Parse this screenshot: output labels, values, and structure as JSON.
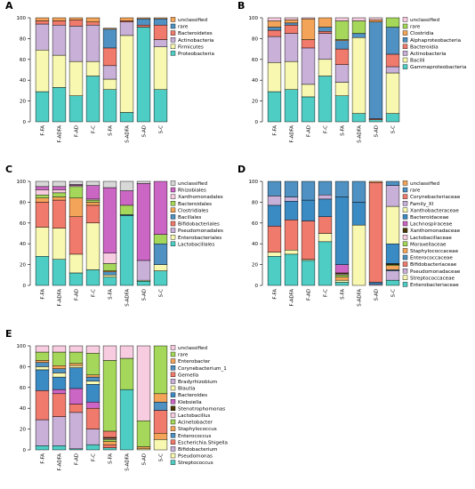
{
  "chart_data": [
    {
      "type": "bar",
      "panel": "A",
      "categories": [
        "F-FA",
        "F-ADFA",
        "F-AD",
        "F-C",
        "S-FA",
        "S-ADFA",
        "S-AD",
        "S-C"
      ],
      "ylim": [
        0,
        100
      ],
      "yticks": [
        "0",
        "20",
        "40",
        "60",
        "80",
        "100"
      ],
      "legend": [
        "unclassified",
        "rare",
        "Bacteroidetes",
        "Actinobacteria",
        "Firmicutes",
        "Proteobacteria"
      ],
      "series": [
        {
          "name": "Proteobacteria",
          "color": "#4ecdc4",
          "values": [
            29,
            33,
            25,
            44,
            31,
            9,
            91,
            31
          ]
        },
        {
          "name": "Firmicutes",
          "color": "#f8f8b0",
          "values": [
            40,
            31,
            33,
            14,
            10,
            74,
            0,
            41
          ]
        },
        {
          "name": "Actinobacteria",
          "color": "#c8b0d8",
          "values": [
            25,
            29,
            34,
            35,
            13,
            13,
            0,
            7
          ]
        },
        {
          "name": "Bacteroidetes",
          "color": "#f07a6c",
          "values": [
            3,
            4,
            6,
            3,
            17,
            1,
            2,
            14
          ]
        },
        {
          "name": "rare",
          "color": "#4e91c2",
          "values": [
            0,
            0,
            0,
            0,
            18,
            0,
            6,
            6
          ]
        },
        {
          "name": "unclassified",
          "color": "#f4a458",
          "values": [
            3,
            3,
            2,
            4,
            1,
            3,
            1,
            1
          ]
        }
      ]
    },
    {
      "type": "bar",
      "panel": "B",
      "categories": [
        "F-FA",
        "F-ADFA",
        "F-AD",
        "F-C",
        "S-FA",
        "S-ADFA",
        "S-AD",
        "S-C"
      ],
      "ylim": [
        0,
        100
      ],
      "yticks": [
        "0",
        "20",
        "40",
        "60",
        "80",
        "100"
      ],
      "legend": [
        "unclassified",
        "rare",
        "Clostridia",
        "Alphaproteobacteria",
        "Bacteroidia",
        "Actinobacteria",
        "Bacilli",
        "Gammaproteobacteria"
      ],
      "series": [
        {
          "name": "Gammaproteobacteria",
          "color": "#4ecdc4",
          "values": [
            29,
            31,
            24,
            44,
            25,
            8,
            2,
            8
          ]
        },
        {
          "name": "Bacilli",
          "color": "#f8f8b0",
          "values": [
            28,
            27,
            12,
            16,
            13,
            73,
            0,
            39
          ]
        },
        {
          "name": "Actinobacteria",
          "color": "#c8b0d8",
          "values": [
            25,
            27,
            35,
            25,
            17,
            0,
            0,
            6
          ]
        },
        {
          "name": "Bacteroidia",
          "color": "#f07a6c",
          "values": [
            6,
            8,
            8,
            2,
            15,
            0,
            1,
            12
          ]
        },
        {
          "name": "Alphaproteobacteria",
          "color": "#4e91c2",
          "values": [
            3,
            2,
            0,
            4,
            8,
            4,
            93,
            26
          ]
        },
        {
          "name": "Clostridia",
          "color": "#f4a458",
          "values": [
            6,
            3,
            20,
            9,
            1,
            0,
            2,
            0
          ]
        },
        {
          "name": "rare",
          "color": "#a5d85a",
          "values": [
            0,
            0,
            0,
            0,
            18,
            12,
            0,
            9
          ]
        },
        {
          "name": "unclassified",
          "color": "#f8cce0",
          "values": [
            3,
            2,
            1,
            0,
            3,
            3,
            2,
            0
          ]
        }
      ]
    },
    {
      "type": "bar",
      "panel": "C",
      "categories": [
        "F-FA",
        "F-ADFA",
        "F-AD",
        "F-C",
        "S-FA",
        "S-ADFA",
        "S-AD",
        "S-C"
      ],
      "ylim": [
        0,
        100
      ],
      "yticks": [
        "0",
        "20",
        "40",
        "60",
        "80",
        "100"
      ],
      "legend": [
        "unclassified",
        "Rhizobiales",
        "Xanthomonadales",
        "Bacteroidales",
        "Clostridiales",
        "Bacillales",
        "Bifidobacteriales",
        "Pseudomonadales",
        "Enterobacteriales",
        "Lactobacillales"
      ],
      "series": [
        {
          "name": "Lactobacillales",
          "color": "#4ecdc4",
          "values": [
            28,
            25,
            12,
            15,
            8,
            67,
            4,
            14
          ]
        },
        {
          "name": "Enterobacteriales",
          "color": "#f8f8b0",
          "values": [
            28,
            30,
            18,
            45,
            2,
            0,
            1,
            6
          ]
        },
        {
          "name": "Pseudomonadales",
          "color": "#c8b0d8",
          "values": [
            0,
            0,
            0,
            0,
            0,
            0,
            19,
            0
          ]
        },
        {
          "name": "Bifidobacteriales",
          "color": "#f07a6c",
          "values": [
            24,
            27,
            36,
            17,
            0,
            0,
            0,
            0
          ]
        },
        {
          "name": "Bacillales",
          "color": "#4e91c2",
          "values": [
            0,
            0,
            0,
            0,
            3,
            1,
            0,
            20
          ]
        },
        {
          "name": "Clostridiales",
          "color": "#f4a458",
          "values": [
            4,
            3,
            18,
            3,
            1,
            0,
            0,
            0
          ]
        },
        {
          "name": "Bacteroidales",
          "color": "#a5d85a",
          "values": [
            3,
            4,
            11,
            2,
            7,
            9,
            0,
            9
          ]
        },
        {
          "name": "Xanthomonadales",
          "color": "#f8cce0",
          "values": [
            5,
            3,
            1,
            1,
            10,
            0,
            0,
            0
          ]
        },
        {
          "name": "Rhizobiales",
          "color": "#cc66c4",
          "values": [
            3,
            3,
            1,
            13,
            63,
            14,
            74,
            51
          ]
        },
        {
          "name": "unclassified",
          "color": "#d8d8d8",
          "values": [
            5,
            5,
            3,
            4,
            6,
            9,
            2,
            0
          ]
        }
      ]
    },
    {
      "type": "bar",
      "panel": "D",
      "categories": [
        "F-FA",
        "F-ADFA",
        "F-AD",
        "F-C",
        "S-FA",
        "S-ADFA",
        "S-AD",
        "S-C"
      ],
      "ylim": [
        0,
        100
      ],
      "yticks": [
        "0",
        "20",
        "40",
        "60",
        "80",
        "100"
      ],
      "legend": [
        "unclassified",
        "rare",
        "Corynebacteriaceae",
        "Family_XI",
        "Xanthobacteraceae",
        "Bacteroidaceae",
        "Lachnospiraceae",
        "Xanthomonadaceae",
        "Lactobacillaceae",
        "Moraxellaceae",
        "Staphylococcaceae",
        "Enterococcaceae",
        "Bifidobacteriaceae",
        "Pseudomonadaceae",
        "Streptococcaceae",
        "Enterobacteriaceae"
      ],
      "series": [
        {
          "name": "Enterobacteriaceae",
          "color": "#4ecdc4",
          "values": [
            28,
            30,
            24,
            42,
            3,
            0,
            0,
            5
          ]
        },
        {
          "name": "Streptococcaceae",
          "color": "#f8f8b0",
          "values": [
            4,
            4,
            1,
            8,
            2,
            58,
            0,
            0
          ]
        },
        {
          "name": "Pseudomonadaceae",
          "color": "#c8b0d8",
          "values": [
            0,
            0,
            0,
            0,
            0,
            0,
            1,
            9
          ]
        },
        {
          "name": "Bifidobacteriaceae",
          "color": "#f07a6c",
          "values": [
            25,
            29,
            37,
            16,
            0,
            0,
            0,
            0
          ]
        },
        {
          "name": "Enterococcaceae",
          "color": "#4e91c2",
          "values": [
            0,
            0,
            0,
            0,
            0,
            0,
            0,
            1
          ]
        },
        {
          "name": "Staphylococcaceae",
          "color": "#f4a458",
          "values": [
            0,
            0,
            0,
            0,
            3,
            0,
            0,
            4
          ]
        },
        {
          "name": "Moraxellaceae",
          "color": "#a5d85a",
          "values": [
            0,
            0,
            0,
            0,
            2,
            0,
            0,
            1
          ]
        },
        {
          "name": "Lactobacillaceae",
          "color": "#f8cce0",
          "values": [
            0,
            0,
            0,
            0,
            1,
            0,
            0,
            0
          ]
        },
        {
          "name": "Xanthomonadaceae",
          "color": "#4a3a08",
          "values": [
            0,
            0,
            0,
            0,
            1,
            0,
            0,
            1
          ]
        },
        {
          "name": "Lachnospiraceae",
          "color": "#cc66c4",
          "values": [
            0,
            0,
            0,
            0,
            8,
            0,
            0,
            0
          ]
        },
        {
          "name": "Bacteroidaceae",
          "color": "#3a8ac4",
          "values": [
            20,
            18,
            20,
            17,
            65,
            22,
            2,
            19
          ]
        },
        {
          "name": "Xanthobacteraceae",
          "color": "#f8f8b0",
          "values": [
            0,
            0,
            0,
            0,
            0,
            0,
            0,
            36
          ]
        },
        {
          "name": "Family_XI",
          "color": "#c8b0d8",
          "values": [
            9,
            4,
            0,
            4,
            0,
            0,
            0,
            20
          ]
        },
        {
          "name": "Corynebacteriaceae",
          "color": "#f07a6c",
          "values": [
            0,
            0,
            0,
            0,
            0,
            0,
            96,
            0
          ]
        },
        {
          "name": "rare",
          "color": "#4e91c2",
          "values": [
            14,
            15,
            18,
            13,
            15,
            20,
            0,
            4
          ]
        },
        {
          "name": "unclassified",
          "color": "#f4a458",
          "values": [
            0,
            0,
            0,
            0,
            0,
            0,
            1,
            0
          ]
        }
      ]
    },
    {
      "type": "bar",
      "panel": "E",
      "categories": [
        "F-FA",
        "F-ADFA",
        "F-AD",
        "F-C",
        "S-FA",
        "S-ADFA",
        "S-AD",
        "S-C"
      ],
      "ylim": [
        0,
        100
      ],
      "yticks": [
        "0",
        "20",
        "40",
        "60",
        "80",
        "100"
      ],
      "legend": [
        "unclassified",
        "rare",
        "Enterobacter",
        "Corynebacterium_1",
        "Gemella",
        "Bradyrhizobium",
        "Blautia",
        "Bacteroides",
        "Klebsiella",
        "Stenotrophomonas",
        "Lactobacillus",
        "Acinetobacter",
        "Staphylococcus",
        "Enterococcus",
        "Escherichia.Shigella",
        "Bifidobacterium",
        "Pseudomonas",
        "Streptococcus"
      ],
      "series": [
        {
          "name": "Streptococcus",
          "color": "#4ecdc4",
          "values": [
            4,
            4,
            1,
            5,
            2,
            58,
            0,
            0
          ]
        },
        {
          "name": "Pseudomonas",
          "color": "#f8f8b0",
          "values": [
            0,
            0,
            0,
            0,
            0,
            0,
            1,
            10
          ]
        },
        {
          "name": "Bifidobacterium",
          "color": "#c8b0d8",
          "values": [
            25,
            28,
            35,
            15,
            0,
            0,
            0,
            0
          ]
        },
        {
          "name": "Escherichia.Shigella",
          "color": "#f07a6c",
          "values": [
            28,
            22,
            8,
            20,
            3,
            0,
            0,
            0
          ]
        },
        {
          "name": "Enterococcus",
          "color": "#4e91c2",
          "values": [
            0,
            0,
            0,
            0,
            0,
            0,
            0,
            0
          ]
        },
        {
          "name": "Staphylococcus",
          "color": "#f4a458",
          "values": [
            0,
            0,
            0,
            0,
            3,
            0,
            2,
            6
          ]
        },
        {
          "name": "Acinetobacter",
          "color": "#a5d85a",
          "values": [
            0,
            0,
            0,
            0,
            2,
            0,
            0,
            0
          ]
        },
        {
          "name": "Lactobacillus",
          "color": "#f8cce0",
          "values": [
            0,
            0,
            0,
            0,
            1,
            0,
            0,
            0
          ]
        },
        {
          "name": "Stenotrophomonas",
          "color": "#4a3a08",
          "values": [
            0,
            0,
            0,
            0,
            1,
            0,
            0,
            0
          ]
        },
        {
          "name": "Klebsiella",
          "color": "#cc66c4",
          "values": [
            0,
            4,
            15,
            6,
            0,
            0,
            0,
            0
          ]
        },
        {
          "name": "Bacteroides",
          "color": "#3a8ac4",
          "values": [
            20,
            12,
            20,
            17,
            0,
            0,
            0,
            0
          ]
        },
        {
          "name": "Blautia",
          "color": "#f8f8b0",
          "values": [
            3,
            4,
            2,
            3,
            0,
            0,
            0,
            0
          ]
        },
        {
          "name": "Bradyrhizobium",
          "color": "#c8b0d8",
          "values": [
            0,
            0,
            0,
            0,
            0,
            0,
            0,
            0
          ]
        },
        {
          "name": "Gemella",
          "color": "#f07a6c",
          "values": [
            0,
            0,
            0,
            0,
            6,
            0,
            0,
            22
          ]
        },
        {
          "name": "Corynebacterium_1",
          "color": "#4e91c2",
          "values": [
            4,
            4,
            0,
            4,
            0,
            0,
            0,
            8
          ]
        },
        {
          "name": "Enterobacter",
          "color": "#f4a458",
          "values": [
            2,
            3,
            2,
            2,
            0,
            0,
            0,
            8
          ]
        },
        {
          "name": "rare",
          "color": "#a5d85a",
          "values": [
            8,
            13,
            11,
            21,
            68,
            30,
            25,
            46
          ]
        },
        {
          "name": "unclassified",
          "color": "#f8cce0",
          "values": [
            6,
            6,
            6,
            7,
            14,
            12,
            72,
            0
          ]
        }
      ]
    }
  ]
}
